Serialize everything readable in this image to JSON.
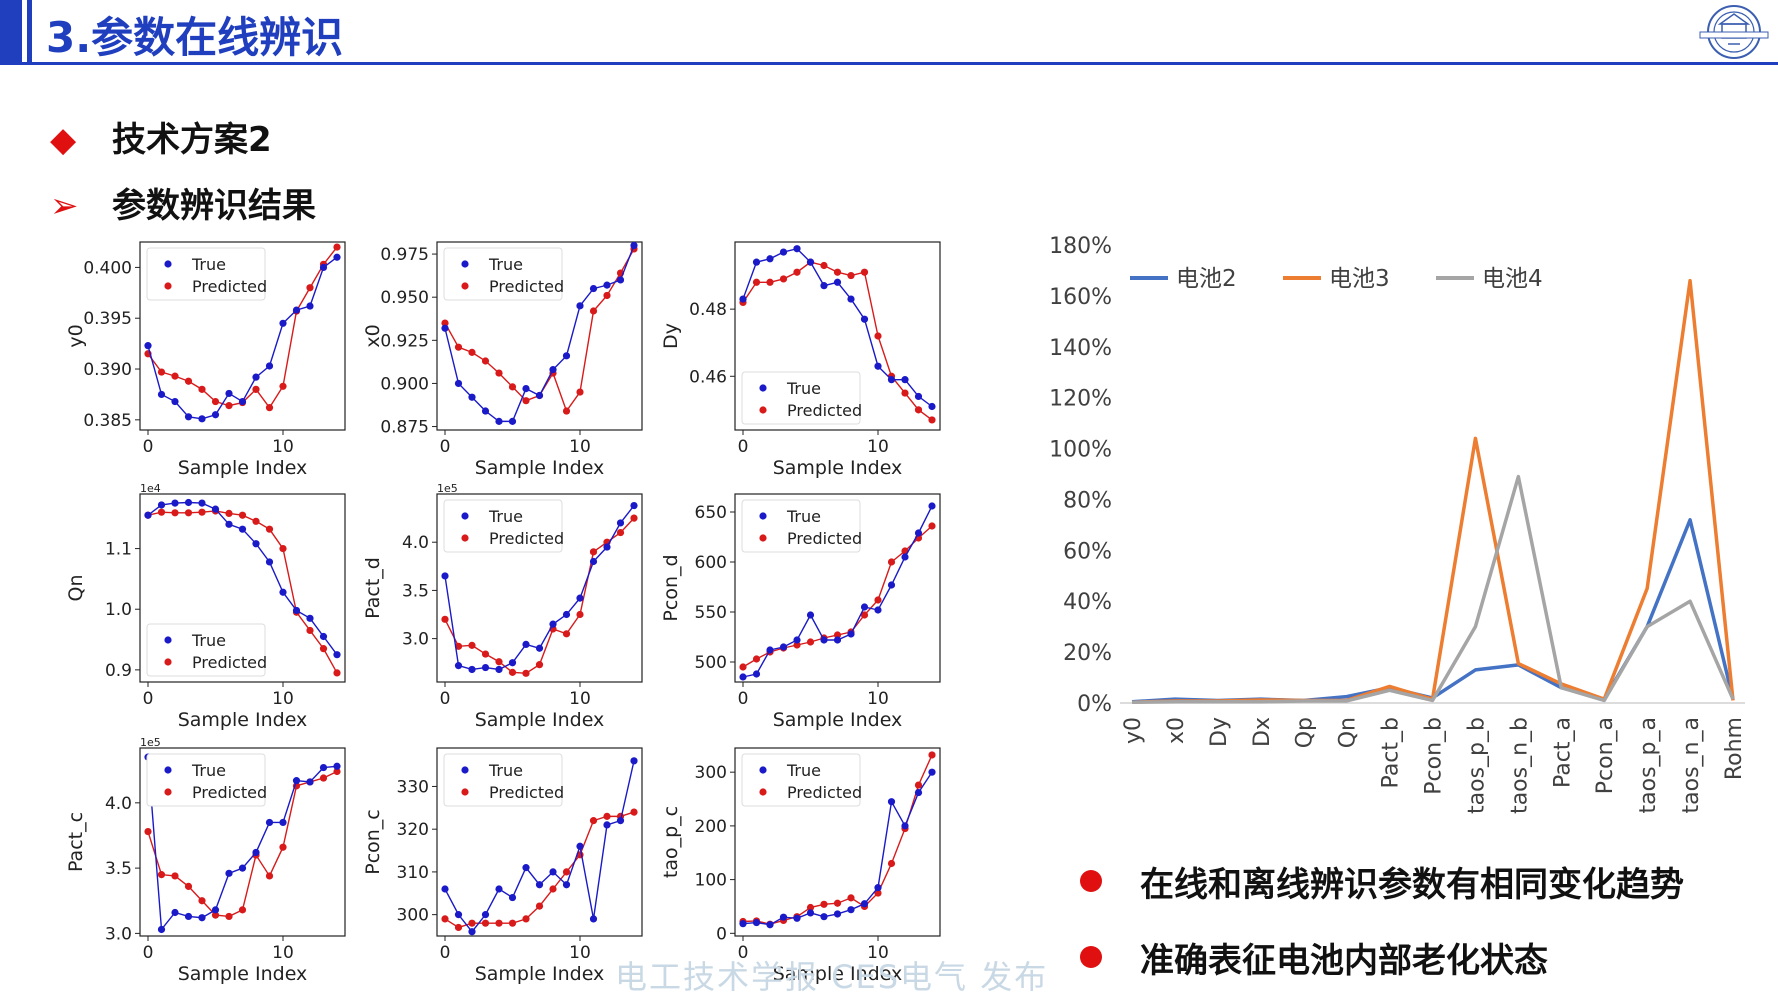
{
  "header": {
    "title": "3.参数在线辨识"
  },
  "bullets": [
    {
      "marker": "◆",
      "text": "技术方案2"
    },
    {
      "marker": "➢",
      "text": "参数辨识结果"
    }
  ],
  "colors": {
    "accent": "#1f3fbf",
    "true_series": "#1a1ac8",
    "pred_series": "#d81a1a",
    "red": "#e01010"
  },
  "chart_data": [
    {
      "type": "line",
      "ylabel": "y0",
      "xlabel": "Sample Index",
      "offset": "",
      "ylim": [
        0.384,
        0.4025
      ],
      "yticks": [
        "0.385",
        "0.390",
        "0.395",
        "0.400"
      ],
      "ytickvals": [
        0.385,
        0.39,
        0.395,
        0.4
      ],
      "legend": "top-left",
      "series": [
        {
          "name": "True",
          "values": [
            0.3923,
            0.3875,
            0.3868,
            0.3853,
            0.3851,
            0.3855,
            0.3876,
            0.3868,
            0.3892,
            0.3903,
            0.3945,
            0.3958,
            0.3962,
            0.4,
            0.401
          ]
        },
        {
          "name": "Predicted",
          "values": [
            0.3915,
            0.3897,
            0.3893,
            0.3888,
            0.388,
            0.3868,
            0.3864,
            0.3867,
            0.388,
            0.3862,
            0.3883,
            0.3957,
            0.398,
            0.4003,
            0.402
          ]
        }
      ]
    },
    {
      "type": "line",
      "ylabel": "x0",
      "xlabel": "Sample Index",
      "offset": "",
      "ylim": [
        0.873,
        0.982
      ],
      "yticks": [
        "0.875",
        "0.900",
        "0.925",
        "0.950",
        "0.975"
      ],
      "ytickvals": [
        0.875,
        0.9,
        0.925,
        0.95,
        0.975
      ],
      "legend": "top-left",
      "series": [
        {
          "name": "True",
          "values": [
            0.932,
            0.9,
            0.892,
            0.884,
            0.878,
            0.878,
            0.897,
            0.893,
            0.908,
            0.916,
            0.945,
            0.955,
            0.957,
            0.96,
            0.98
          ]
        },
        {
          "name": "Predicted",
          "values": [
            0.935,
            0.921,
            0.918,
            0.913,
            0.906,
            0.898,
            0.89,
            0.893,
            0.906,
            0.884,
            0.895,
            0.942,
            0.951,
            0.964,
            0.978
          ]
        }
      ]
    },
    {
      "type": "line",
      "ylabel": "Dy",
      "xlabel": "Sample Index",
      "offset": "",
      "ylim": [
        0.444,
        0.5
      ],
      "yticks": [
        "0.46",
        "0.48"
      ],
      "ytickvals": [
        0.46,
        0.48
      ],
      "legend": "bottom-left",
      "series": [
        {
          "name": "True",
          "values": [
            0.483,
            0.494,
            0.495,
            0.497,
            0.498,
            0.494,
            0.487,
            0.488,
            0.483,
            0.477,
            0.463,
            0.459,
            0.459,
            0.454,
            0.451
          ]
        },
        {
          "name": "Predicted",
          "values": [
            0.482,
            0.488,
            0.488,
            0.489,
            0.491,
            0.494,
            0.493,
            0.491,
            0.49,
            0.491,
            0.472,
            0.46,
            0.455,
            0.45,
            0.447
          ]
        }
      ]
    },
    {
      "type": "line",
      "ylabel": "Qn",
      "xlabel": "Sample Index",
      "offset": "1e4",
      "ylim": [
        0.88,
        1.19
      ],
      "yticks": [
        "0.9",
        "1.0",
        "1.1"
      ],
      "ytickvals": [
        0.9,
        1.0,
        1.1
      ],
      "legend": "bottom-left",
      "series": [
        {
          "name": "True",
          "values": [
            1.155,
            1.172,
            1.175,
            1.176,
            1.175,
            1.165,
            1.14,
            1.132,
            1.108,
            1.078,
            1.028,
            0.998,
            0.985,
            0.955,
            0.925
          ]
        },
        {
          "name": "Predicted",
          "values": [
            1.155,
            1.16,
            1.159,
            1.159,
            1.16,
            1.162,
            1.158,
            1.155,
            1.145,
            1.132,
            1.1,
            0.995,
            0.965,
            0.935,
            0.895
          ]
        }
      ]
    },
    {
      "type": "line",
      "ylabel": "Pact_d",
      "xlabel": "Sample Index",
      "offset": "1e5",
      "ylim": [
        2.55,
        4.5
      ],
      "yticks": [
        "3.0",
        "3.5",
        "4.0"
      ],
      "ytickvals": [
        3.0,
        3.5,
        4.0
      ],
      "legend": "top-left",
      "series": [
        {
          "name": "True",
          "values": [
            3.65,
            2.72,
            2.68,
            2.7,
            2.68,
            2.75,
            2.94,
            2.9,
            3.15,
            3.25,
            3.42,
            3.8,
            3.95,
            4.2,
            4.38
          ]
        },
        {
          "name": "Predicted",
          "values": [
            3.2,
            2.92,
            2.93,
            2.84,
            2.76,
            2.65,
            2.64,
            2.73,
            3.1,
            3.05,
            3.25,
            3.9,
            4.0,
            4.1,
            4.25
          ]
        }
      ]
    },
    {
      "type": "line",
      "ylabel": "Pcon_d",
      "xlabel": "Sample Index",
      "offset": "",
      "ylim": [
        480,
        668
      ],
      "yticks": [
        "500",
        "550",
        "600",
        "650"
      ],
      "ytickvals": [
        500,
        550,
        600,
        650
      ],
      "legend": "top-left",
      "series": [
        {
          "name": "True",
          "values": [
            485,
            488,
            512,
            515,
            522,
            547,
            522,
            522,
            528,
            555,
            552,
            577,
            605,
            629,
            656
          ]
        },
        {
          "name": "Predicted",
          "values": [
            495,
            503,
            510,
            514,
            517,
            520,
            524,
            527,
            530,
            547,
            562,
            600,
            611,
            624,
            636
          ]
        }
      ]
    },
    {
      "type": "line",
      "ylabel": "Pact_c",
      "xlabel": "Sample Index",
      "offset": "1e5",
      "ylim": [
        2.98,
        4.42
      ],
      "yticks": [
        "3.0",
        "3.5",
        "4.0"
      ],
      "ytickvals": [
        3.0,
        3.5,
        4.0
      ],
      "legend": "top-left",
      "series": [
        {
          "name": "True",
          "values": [
            4.35,
            3.03,
            3.16,
            3.13,
            3.12,
            3.18,
            3.46,
            3.5,
            3.62,
            3.85,
            3.85,
            4.17,
            4.16,
            4.27,
            4.28
          ]
        },
        {
          "name": "Predicted",
          "values": [
            3.78,
            3.45,
            3.44,
            3.36,
            3.25,
            3.14,
            3.13,
            3.18,
            3.6,
            3.44,
            3.66,
            4.13,
            4.16,
            4.19,
            4.24
          ]
        }
      ]
    },
    {
      "type": "line",
      "ylabel": "Pcon_c",
      "xlabel": "Sample Index",
      "offset": "",
      "ylim": [
        295,
        339
      ],
      "yticks": [
        "300",
        "310",
        "320",
        "330"
      ],
      "ytickvals": [
        300,
        310,
        320,
        330
      ],
      "legend": "top-left",
      "series": [
        {
          "name": "True",
          "values": [
            306,
            300,
            296,
            300,
            306,
            304,
            311,
            307,
            310,
            307,
            316,
            299,
            321,
            322,
            336
          ]
        },
        {
          "name": "Predicted",
          "values": [
            299,
            297,
            298,
            298,
            298,
            298,
            299,
            302,
            306,
            310,
            314,
            322,
            323,
            323,
            324
          ]
        }
      ]
    },
    {
      "type": "line",
      "ylabel": "tao_p_c",
      "xlabel": "Sample Index",
      "offset": "",
      "ylim": [
        -5,
        345
      ],
      "yticks": [
        "0",
        "100",
        "200",
        "300"
      ],
      "ytickvals": [
        0,
        100,
        200,
        300
      ],
      "legend": "top-left",
      "series": [
        {
          "name": "True",
          "values": [
            18,
            20,
            16,
            30,
            28,
            38,
            31,
            36,
            44,
            55,
            85,
            245,
            200,
            262,
            300
          ]
        },
        {
          "name": "Predicted",
          "values": [
            22,
            23,
            17,
            24,
            31,
            48,
            54,
            56,
            66,
            50,
            75,
            130,
            195,
            276,
            332
          ]
        }
      ]
    },
    {
      "type": "line",
      "ylabel": "",
      "xlabel": "",
      "offset": "",
      "ylim": [
        0,
        180
      ],
      "legend": "top",
      "yticks": [
        "0%",
        "20%",
        "40%",
        "60%",
        "80%",
        "100%",
        "120%",
        "140%",
        "160%",
        "180%"
      ],
      "ytickvals": [
        0,
        20,
        40,
        60,
        80,
        100,
        120,
        140,
        160,
        180
      ],
      "categories": [
        "y0",
        "x0",
        "Dy",
        "Dx",
        "Qp",
        "Qn",
        "Pact_b",
        "Pcon_b",
        "taos_p_b",
        "taos_n_b",
        "Pact_a",
        "Pcon_a",
        "taos_p_a",
        "taos_n_a",
        "Rohm"
      ],
      "series": [
        {
          "name": "电池2",
          "color": "#4472c4",
          "values": [
            0.5,
            1.5,
            1.0,
            1.5,
            1.0,
            2.5,
            6.0,
            2.0,
            13.0,
            15.0,
            6.0,
            1.5,
            30.0,
            72.0,
            1.5
          ]
        },
        {
          "name": "电池3",
          "color": "#ed7d31",
          "values": [
            0.3,
            0.8,
            0.8,
            1.2,
            1.0,
            1.0,
            6.5,
            1.5,
            104.0,
            15.5,
            7.5,
            1.5,
            45.0,
            166.0,
            1.0
          ]
        },
        {
          "name": "电池4",
          "color": "#a5a5a5",
          "values": [
            0.3,
            0.5,
            0.5,
            0.5,
            0.8,
            0.8,
            5.0,
            1.0,
            30.0,
            89.0,
            6.0,
            1.0,
            30.0,
            40.0,
            1.5
          ]
        }
      ]
    }
  ],
  "conclusions": [
    "在线和离线辨识参数有相同变化趋势",
    "准确表征电池内部老化状态"
  ],
  "watermark": "电工技术学报 CES电气 发布"
}
